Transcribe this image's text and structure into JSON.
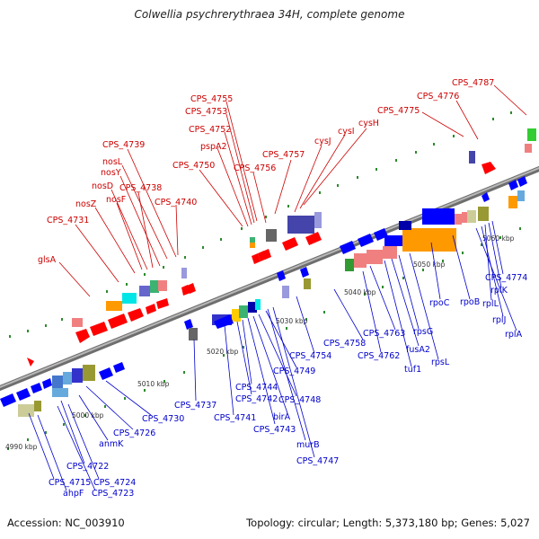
{
  "title": "Colwellia psychrerythraea 34H, complete genome",
  "footer": {
    "accession": "Accession: NC_003910",
    "summary": "Topology: circular; Length: 5,373,180 bp; Genes: 5,027"
  },
  "colors": {
    "forward_label": "#cc0000",
    "reverse_label": "#0000cc",
    "backbone": "#8c8c8c",
    "dots": "#2d8a2d"
  },
  "ticks": [
    "4990 kbp",
    "5000 kbp",
    "5010 kbp",
    "5020 kbp",
    "5030 kbp",
    "5040 kbp",
    "5050 kbp",
    "5060 kbp"
  ],
  "forward_labels": [
    "CPS_4787",
    "CPS_4776",
    "CPS_4775",
    "cysH",
    "cysI",
    "cysJ",
    "CPS_4757",
    "CPS_4756",
    "CPS_4755",
    "CPS_4753",
    "CPS_4752",
    "pspA2",
    "CPS_4750",
    "CPS_4740",
    "CPS_4739",
    "nosL",
    "nosY",
    "CPS_4738",
    "nosD",
    "nosF",
    "nosZ",
    "CPS_4731",
    "glsA"
  ],
  "reverse_labels": [
    "CPS_4774",
    "rplK",
    "rplL",
    "rplJ",
    "rplA",
    "rpoB",
    "rpoC",
    "rpsG",
    "fusA2",
    "tuf1",
    "rpsL",
    "CPS_4763",
    "CPS_4762",
    "CPS_4758",
    "CPS_4754",
    "CPS_4749",
    "CPS_4748",
    "CPS_4744",
    "CPS_4742",
    "CPS_4741",
    "birA",
    "CPS_4743",
    "murB",
    "CPS_4747",
    "CPS_4737",
    "CPS_4730",
    "CPS_4726",
    "anmK",
    "CPS_4722",
    "CPS_4715",
    "CPS_4724",
    "ahpF",
    "CPS_4723"
  ]
}
